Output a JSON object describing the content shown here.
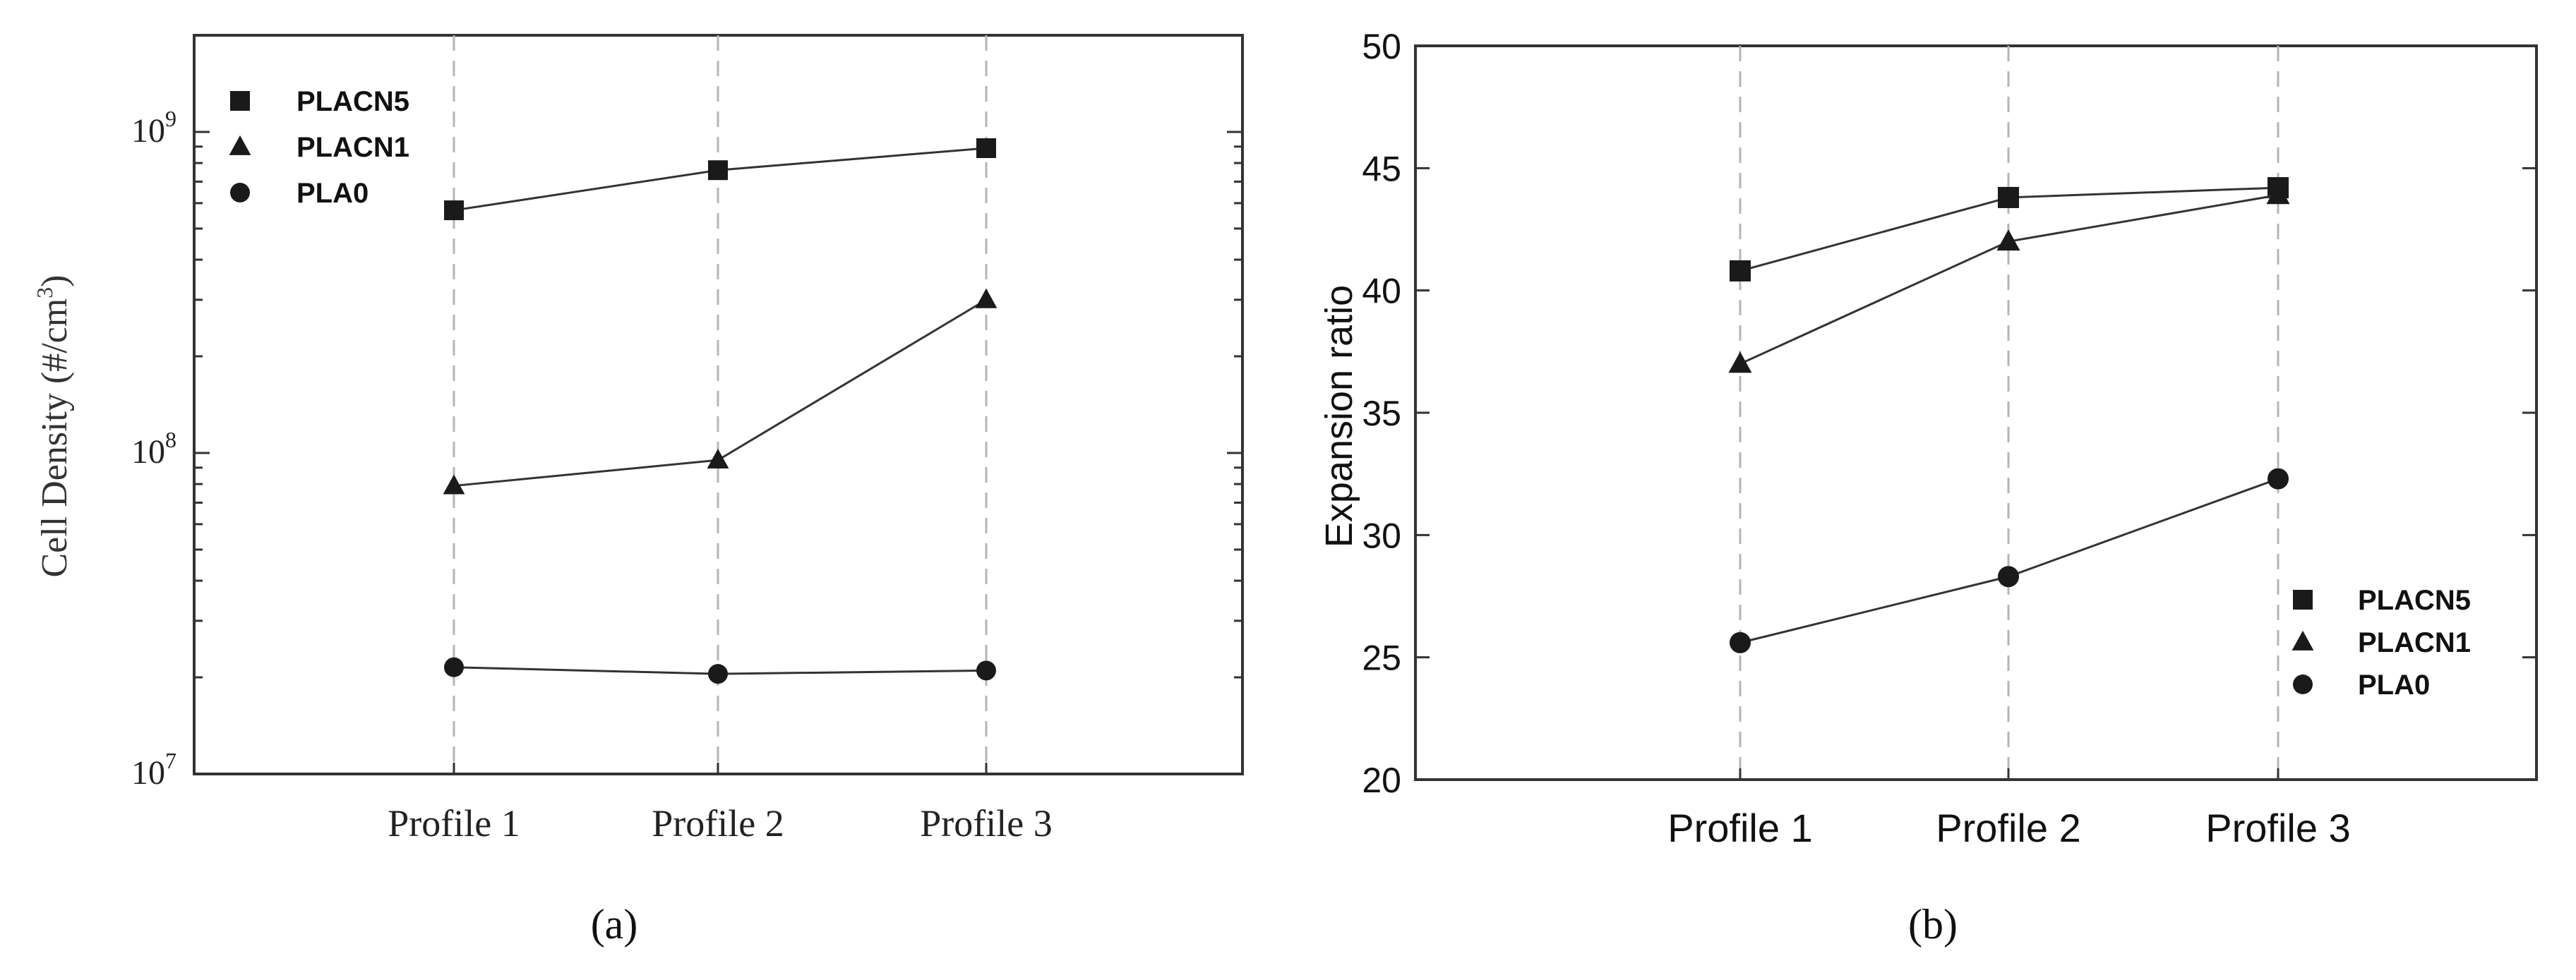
{
  "chart_data": [
    {
      "type": "line",
      "categories": [
        "Profile 1",
        "Profile 2",
        "Profile 3"
      ],
      "ylabel": "Cell Density (#/cm",
      "ylabel_sup": "3",
      "ylabel_close": ")",
      "yscale": "log",
      "ylim": [
        10000000,
        2000000000
      ],
      "yticks": [
        {
          "value": 10000000,
          "base": "10",
          "exp": "7"
        },
        {
          "value": 100000000,
          "base": "10",
          "exp": "8"
        },
        {
          "value": 1000000000,
          "base": "10",
          "exp": "9"
        }
      ],
      "series": [
        {
          "name": "PLACN5",
          "marker": "square",
          "values": [
            570000000,
            760000000,
            890000000
          ]
        },
        {
          "name": "PLACN1",
          "marker": "triangle",
          "values": [
            79000000,
            95000000,
            300000000
          ]
        },
        {
          "name": "PLA0",
          "marker": "circle",
          "values": [
            21500000,
            20500000,
            21000000
          ]
        }
      ],
      "legend_position": "top-left",
      "grid": "vertical dashed",
      "panel_label": "(a)"
    },
    {
      "type": "line",
      "categories": [
        "Profile 1",
        "Profile 2",
        "Profile 3"
      ],
      "ylabel": "Expansion ratio",
      "ylim": [
        20,
        50
      ],
      "yticks": [
        "20",
        "25",
        "30",
        "35",
        "40",
        "45",
        "50"
      ],
      "series": [
        {
          "name": "PLACN5",
          "marker": "square",
          "values": [
            40.8,
            43.8,
            44.2
          ]
        },
        {
          "name": "PLACN1",
          "marker": "triangle",
          "values": [
            37.0,
            42.0,
            43.9
          ]
        },
        {
          "name": "PLA0",
          "marker": "circle",
          "values": [
            25.6,
            28.3,
            32.3
          ]
        }
      ],
      "legend_position": "bottom-right",
      "grid": "vertical dashed",
      "panel_label": "(b)"
    }
  ]
}
